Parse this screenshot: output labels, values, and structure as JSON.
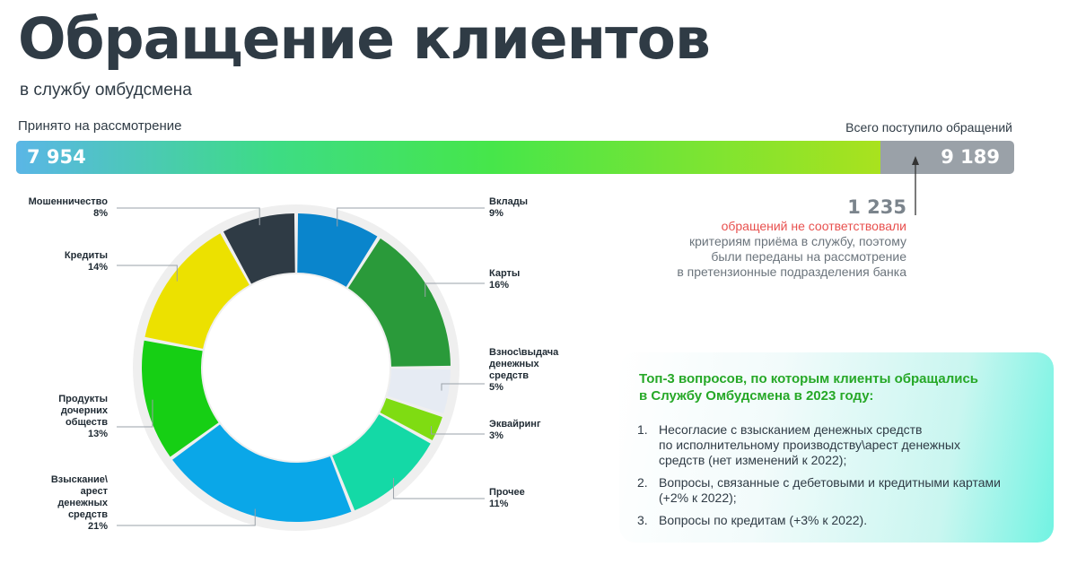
{
  "header": {
    "title": "Обращение клиентов",
    "subtitle": "в службу омбудсмена"
  },
  "summary_bar": {
    "left_label": "Принято на рассмотрение",
    "right_label": "Всего поступило обращений",
    "accepted": 7954,
    "accepted_label": "7 954",
    "total": 9189,
    "total_label": "9 189",
    "colors": {
      "gradient": [
        "#5ab6e6",
        "#3ddc84",
        "#46e64a",
        "#a9e21e"
      ],
      "remainder": "#9aa1a8"
    }
  },
  "note": {
    "number": "1 235",
    "line1": "обращений не соответствовали",
    "line2": "критериям приёма в службу, поэтому",
    "line3": "были переданы на рассмотрение",
    "line4": "в претензионные подразделения банка"
  },
  "top3": {
    "heading_line1": "Топ-3 вопросов, по которым клиенты обращались",
    "heading_line2": "в Службу Омбудсмена в 2023 году:",
    "items": [
      {
        "num": "1.",
        "lines": [
          "Несогласие с взысканием денежных средств",
          "по исполнительному производству\\арест денежных",
          "средств (нет изменений к 2022);"
        ]
      },
      {
        "num": "2.",
        "lines": [
          "Вопросы, связанные с дебетовыми и кредитными картами",
          "(+2% к 2022);"
        ]
      },
      {
        "num": "3.",
        "lines": [
          "Вопросы по кредитам (+3% к 2022)."
        ]
      }
    ]
  },
  "chart_data": {
    "type": "pie",
    "donut": true,
    "categories": [
      "Вклады",
      "Карты",
      "Взнос\\выдача денежных средств",
      "Эквайринг",
      "Прочее",
      "Взыскание\\ арест денежных средств",
      "Продукты дочерних обществ",
      "Кредиты",
      "Мошенничество"
    ],
    "values": [
      9,
      16,
      5,
      3,
      11,
      21,
      13,
      14,
      8
    ],
    "label_lines": [
      [
        "Вклады"
      ],
      [
        "Карты"
      ],
      [
        "Взнос\\выдача",
        "денежных",
        "средств"
      ],
      [
        "Эквайринг"
      ],
      [
        "Прочее"
      ],
      [
        "Взыскание\\",
        "арест",
        "денежных",
        "средств"
      ],
      [
        "Продукты",
        "дочерних",
        "обществ"
      ],
      [
        "Кредиты"
      ],
      [
        "Мошенничество"
      ]
    ],
    "value_labels": [
      "9%",
      "16%",
      "5%",
      "3%",
      "11%",
      "21%",
      "13%",
      "14%",
      "8%"
    ],
    "colors": [
      "#0a85cc",
      "#2a9a3a",
      "#e6ebf3",
      "#7fdc12",
      "#14d9a6",
      "#0aa7e8",
      "#16cf14",
      "#ece100",
      "#2f3b45"
    ],
    "unit": "%"
  }
}
